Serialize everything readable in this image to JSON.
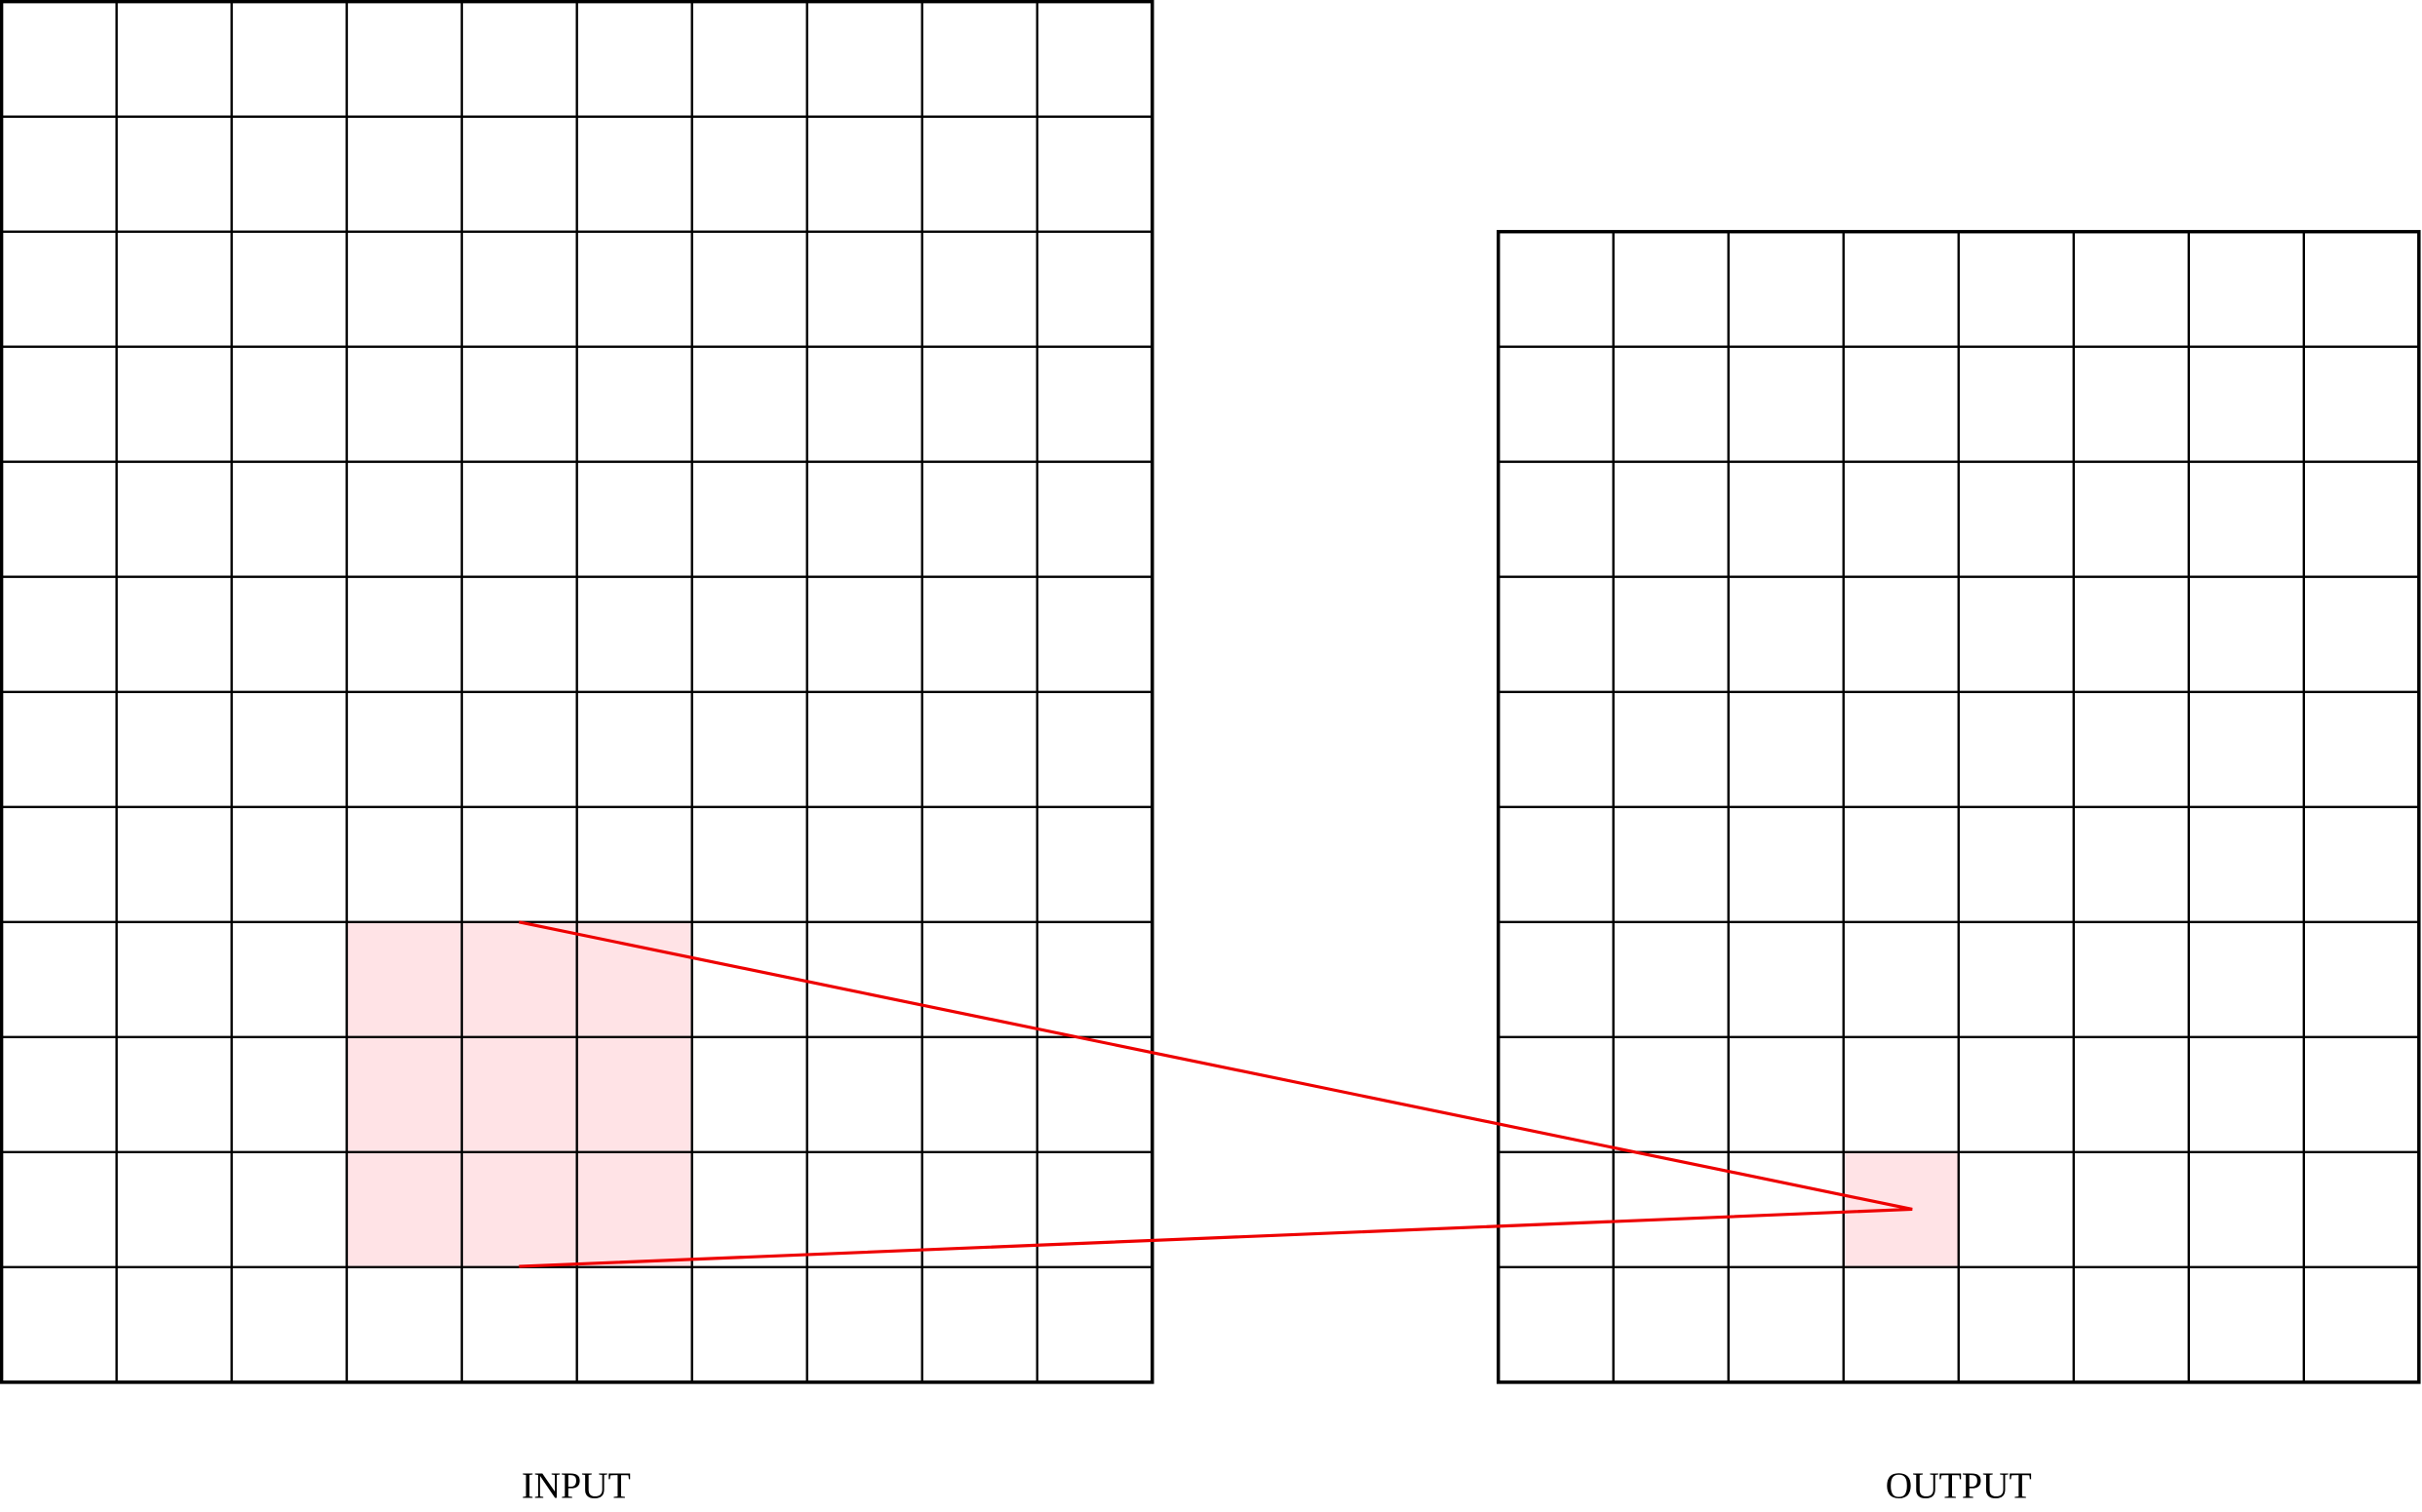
{
  "input_label": "INPUT",
  "output_label": "OUTPUT"
}
